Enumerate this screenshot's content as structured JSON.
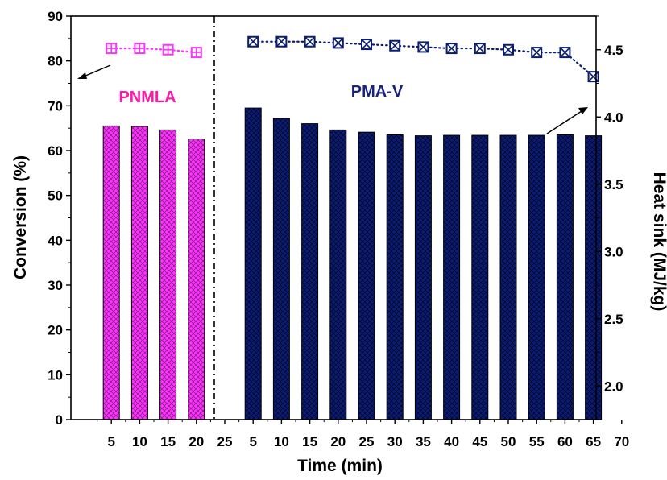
{
  "chart_data": {
    "type": "bar",
    "xlabel": "Time (min)",
    "ylabel": "Conversion (%)",
    "y2label": "Heat sink (MJ/kg)",
    "x_ticks": [
      "5",
      "10",
      "15",
      "20",
      "25",
      "5",
      "10",
      "15",
      "20",
      "25",
      "30",
      "35",
      "40",
      "45",
      "50",
      "55",
      "60",
      "65",
      "70"
    ],
    "ylim": [
      0,
      90
    ],
    "y_ticks": [
      "0",
      "10",
      "20",
      "30",
      "40",
      "50",
      "60",
      "70",
      "80",
      "90"
    ],
    "y2lim": [
      1.75,
      4.75
    ],
    "y2_ticks": [
      "2.0",
      "2.5",
      "3.0",
      "3.5",
      "4.0",
      "4.5"
    ],
    "colors": {
      "PNMLA": "#ff33ff",
      "PMA-V": "#0b1e6b",
      "bar_edge": "#000000"
    },
    "groups": [
      {
        "name": "PNMLA",
        "time": [
          5,
          10,
          15,
          20
        ],
        "conversion": [
          65.5,
          65.4,
          64.6,
          62.6
        ],
        "heat_sink": [
          4.51,
          4.51,
          4.5,
          4.48
        ]
      },
      {
        "name": "PMA-V",
        "time": [
          5,
          10,
          15,
          20,
          25,
          30,
          35,
          40,
          45,
          50,
          55,
          60,
          65
        ],
        "conversion": [
          69.5,
          67.2,
          66.0,
          64.6,
          64.1,
          63.5,
          63.3,
          63.4,
          63.4,
          63.4,
          63.4,
          63.5,
          63.3
        ],
        "heat_sink": [
          4.56,
          4.56,
          4.56,
          4.55,
          4.54,
          4.53,
          4.52,
          4.51,
          4.51,
          4.5,
          4.48,
          4.48,
          4.3
        ]
      }
    ]
  }
}
